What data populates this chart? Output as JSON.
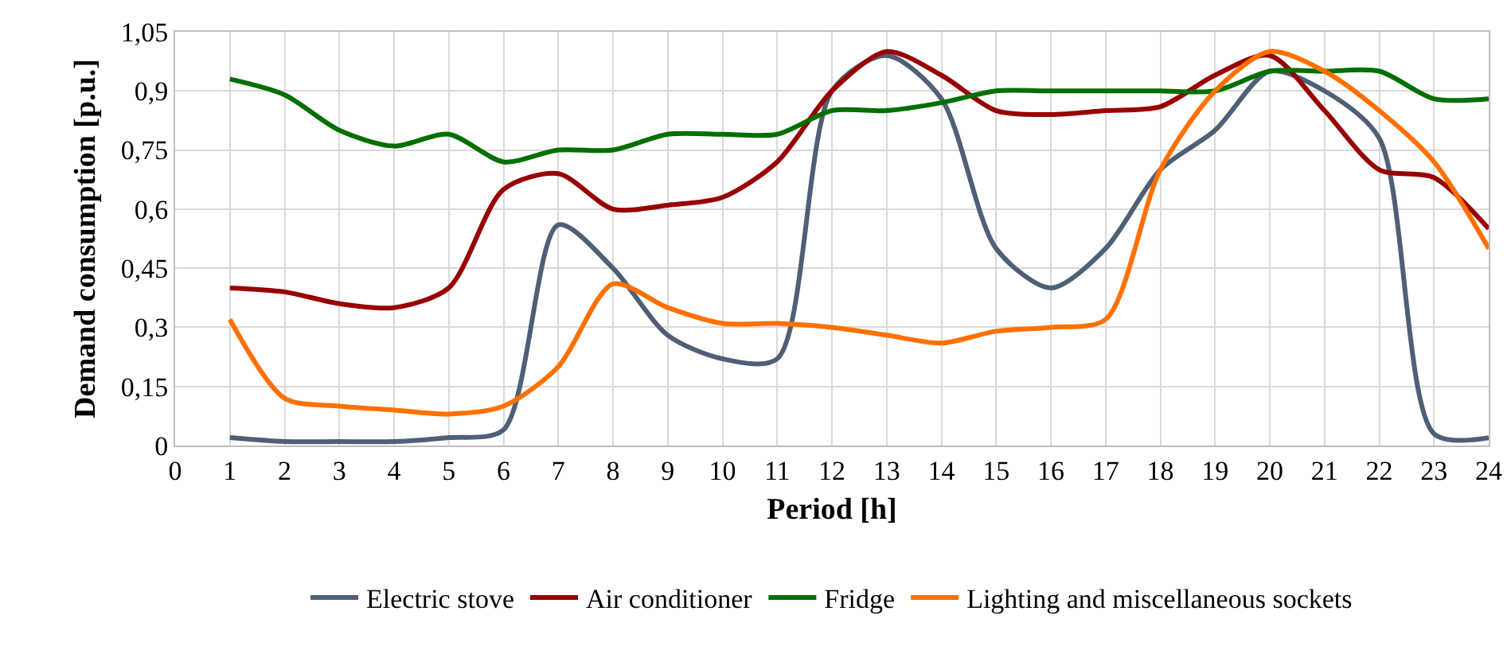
{
  "chart_data": {
    "type": "line",
    "xlabel": "Period [h]",
    "ylabel": "Demand consumption [p.u.]",
    "x": [
      1,
      2,
      3,
      4,
      5,
      6,
      7,
      8,
      9,
      10,
      11,
      12,
      13,
      14,
      15,
      16,
      17,
      18,
      19,
      20,
      21,
      22,
      23,
      24
    ],
    "series": [
      {
        "name": "Electric stove",
        "color": "#4f5f75",
        "values": [
          0.02,
          0.01,
          0.01,
          0.01,
          0.02,
          0.04,
          0.56,
          0.45,
          0.28,
          0.22,
          0.22,
          0.9,
          0.99,
          0.88,
          0.5,
          0.4,
          0.5,
          0.7,
          0.8,
          0.95,
          0.9,
          0.78,
          0.03,
          0.02
        ]
      },
      {
        "name": "Air conditioner",
        "color": "#990000",
        "values": [
          0.4,
          0.39,
          0.36,
          0.35,
          0.4,
          0.65,
          0.69,
          0.6,
          0.61,
          0.63,
          0.72,
          0.9,
          1.0,
          0.94,
          0.85,
          0.84,
          0.85,
          0.86,
          0.94,
          0.99,
          0.85,
          0.7,
          0.68,
          0.55
        ]
      },
      {
        "name": "Fridge",
        "color": "#006f00",
        "values": [
          0.93,
          0.89,
          0.8,
          0.76,
          0.79,
          0.72,
          0.75,
          0.75,
          0.79,
          0.79,
          0.79,
          0.85,
          0.85,
          0.87,
          0.9,
          0.9,
          0.9,
          0.9,
          0.9,
          0.95,
          0.95,
          0.95,
          0.88,
          0.88
        ]
      },
      {
        "name": "Lighting and miscellaneous sockets",
        "color": "#ff7000",
        "values": [
          0.32,
          0.12,
          0.1,
          0.09,
          0.08,
          0.1,
          0.2,
          0.41,
          0.35,
          0.31,
          0.31,
          0.3,
          0.28,
          0.26,
          0.29,
          0.3,
          0.32,
          0.7,
          0.9,
          1.0,
          0.95,
          0.85,
          0.72,
          0.5
        ]
      }
    ],
    "xlim": [
      0,
      24
    ],
    "xticks": [
      0,
      1,
      2,
      3,
      4,
      5,
      6,
      7,
      8,
      9,
      10,
      11,
      12,
      13,
      14,
      15,
      16,
      17,
      18,
      19,
      20,
      21,
      22,
      23,
      24
    ],
    "ylim": [
      0,
      1.05
    ],
    "yticks": [
      0,
      {
        "value": 0.15,
        "label": "0,15"
      },
      {
        "value": 0.3,
        "label": "0,3"
      },
      {
        "value": 0.45,
        "label": "0,45"
      },
      {
        "value": 0.6,
        "label": "0,6"
      },
      {
        "value": 0.75,
        "label": "0,75"
      },
      {
        "value": 0.9,
        "label": "0,9"
      },
      {
        "value": 1.05,
        "label": "1,05"
      }
    ],
    "grid": true,
    "legend": "bottom",
    "marker": "none",
    "line_style": "solid"
  }
}
